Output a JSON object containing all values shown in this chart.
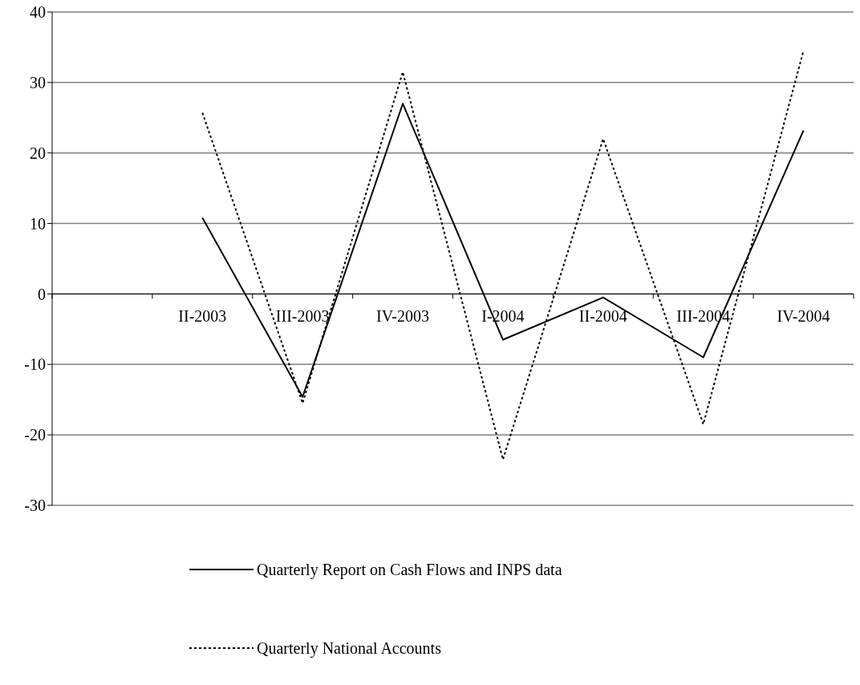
{
  "chart_data": {
    "type": "line",
    "categories": [
      null,
      "II-2003",
      "III-2003",
      "IV-2003",
      "I-2004",
      "II-2004",
      "III-2004",
      "IV-2004"
    ],
    "series": [
      {
        "name": "Quarterly Report on Cash Flows and INPS data",
        "color": "#000000",
        "line_style": "solid",
        "values": [
          null,
          10.8,
          -14.6,
          27,
          -6.5,
          -0.5,
          -9,
          23.2
        ]
      },
      {
        "name": "Quarterly National Accounts",
        "color": "#000000",
        "line_style": "dotted",
        "values": [
          null,
          25.7,
          -15.5,
          31.5,
          -23.5,
          22,
          -18.5,
          34.5
        ]
      }
    ],
    "ylim": [
      -30,
      40
    ],
    "yticks": [
      -30,
      -20,
      -10,
      0,
      10,
      20,
      30,
      40
    ],
    "grid": "y",
    "legend": "bottom",
    "marker": "none"
  }
}
